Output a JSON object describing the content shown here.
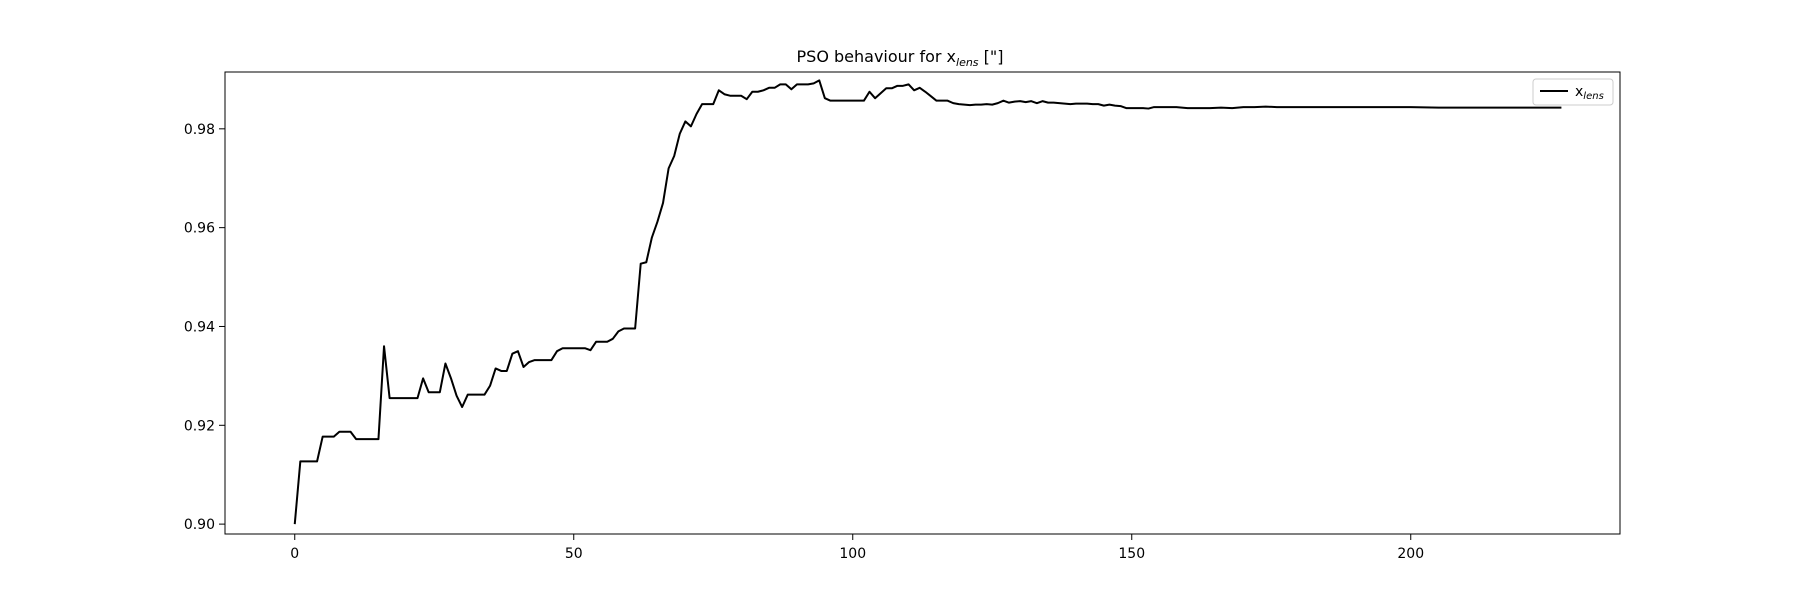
{
  "chart_data": {
    "type": "line",
    "title": {
      "main": "PSO behaviour for x",
      "subscript": "lens",
      "suffix": " [\"]"
    },
    "xlabel": "",
    "ylabel": "",
    "xlim": [
      -12.5,
      237.5
    ],
    "ylim": [
      0.898,
      0.9915
    ],
    "xticks": [
      0,
      50,
      100,
      150,
      200
    ],
    "yticks": [
      0.9,
      0.92,
      0.94,
      0.96,
      0.98
    ],
    "xtick_labels": [
      "0",
      "50",
      "100",
      "150",
      "200"
    ],
    "ytick_labels": [
      "0.90",
      "0.92",
      "0.94",
      "0.96",
      "0.98"
    ],
    "grid": false,
    "legend_placement": "top-right",
    "series": [
      {
        "name": "x",
        "name_subscript": "lens",
        "color": "#000000",
        "points": [
          [
            0,
            0.9
          ],
          [
            1,
            0.9127
          ],
          [
            2,
            0.9127
          ],
          [
            3,
            0.9127
          ],
          [
            4,
            0.9127
          ],
          [
            5,
            0.9177
          ],
          [
            6,
            0.9177
          ],
          [
            7,
            0.9177
          ],
          [
            8,
            0.9187
          ],
          [
            9,
            0.9187
          ],
          [
            10,
            0.9187
          ],
          [
            11,
            0.9172
          ],
          [
            12,
            0.9172
          ],
          [
            13,
            0.9172
          ],
          [
            14,
            0.9172
          ],
          [
            15,
            0.9172
          ],
          [
            16,
            0.936
          ],
          [
            17,
            0.9255
          ],
          [
            18,
            0.9255
          ],
          [
            19,
            0.9255
          ],
          [
            20,
            0.9255
          ],
          [
            21,
            0.9255
          ],
          [
            22,
            0.9255
          ],
          [
            23,
            0.9295
          ],
          [
            24,
            0.9267
          ],
          [
            25,
            0.9267
          ],
          [
            26,
            0.9267
          ],
          [
            27,
            0.9325
          ],
          [
            28,
            0.9295
          ],
          [
            29,
            0.926
          ],
          [
            30,
            0.9237
          ],
          [
            31,
            0.9262
          ],
          [
            32,
            0.9262
          ],
          [
            33,
            0.9262
          ],
          [
            34,
            0.9262
          ],
          [
            35,
            0.928
          ],
          [
            36,
            0.9315
          ],
          [
            37,
            0.931
          ],
          [
            38,
            0.931
          ],
          [
            39,
            0.9345
          ],
          [
            40,
            0.935
          ],
          [
            41,
            0.9318
          ],
          [
            42,
            0.9328
          ],
          [
            43,
            0.9332
          ],
          [
            44,
            0.9332
          ],
          [
            45,
            0.9332
          ],
          [
            46,
            0.9332
          ],
          [
            47,
            0.935
          ],
          [
            48,
            0.9356
          ],
          [
            49,
            0.9356
          ],
          [
            50,
            0.9356
          ],
          [
            51,
            0.9356
          ],
          [
            52,
            0.9356
          ],
          [
            53,
            0.9352
          ],
          [
            54,
            0.9369
          ],
          [
            55,
            0.9369
          ],
          [
            56,
            0.9369
          ],
          [
            57,
            0.9375
          ],
          [
            58,
            0.939
          ],
          [
            59,
            0.9396
          ],
          [
            60,
            0.9396
          ],
          [
            61,
            0.9396
          ],
          [
            62,
            0.9527
          ],
          [
            63,
            0.953
          ],
          [
            64,
            0.958
          ],
          [
            65,
            0.9612
          ],
          [
            66,
            0.965
          ],
          [
            67,
            0.972
          ],
          [
            68,
            0.9745
          ],
          [
            69,
            0.979
          ],
          [
            70,
            0.9815
          ],
          [
            71,
            0.9805
          ],
          [
            72,
            0.983
          ],
          [
            73,
            0.985
          ],
          [
            74,
            0.985
          ],
          [
            75,
            0.985
          ],
          [
            76,
            0.9878
          ],
          [
            77,
            0.987
          ],
          [
            78,
            0.9867
          ],
          [
            79,
            0.9867
          ],
          [
            80,
            0.9867
          ],
          [
            81,
            0.986
          ],
          [
            82,
            0.9875
          ],
          [
            83,
            0.9875
          ],
          [
            84,
            0.9878
          ],
          [
            85,
            0.9883
          ],
          [
            86,
            0.9883
          ],
          [
            87,
            0.989
          ],
          [
            88,
            0.989
          ],
          [
            89,
            0.988
          ],
          [
            90,
            0.989
          ],
          [
            91,
            0.989
          ],
          [
            92,
            0.989
          ],
          [
            93,
            0.9892
          ],
          [
            94,
            0.9898
          ],
          [
            95,
            0.9862
          ],
          [
            96,
            0.9857
          ],
          [
            97,
            0.9857
          ],
          [
            98,
            0.9857
          ],
          [
            99,
            0.9857
          ],
          [
            100,
            0.9857
          ],
          [
            101,
            0.9857
          ],
          [
            102,
            0.9857
          ],
          [
            103,
            0.9875
          ],
          [
            104,
            0.9862
          ],
          [
            105,
            0.9872
          ],
          [
            106,
            0.9882
          ],
          [
            107,
            0.9882
          ],
          [
            108,
            0.9887
          ],
          [
            109,
            0.9887
          ],
          [
            110,
            0.989
          ],
          [
            111,
            0.9878
          ],
          [
            112,
            0.9883
          ],
          [
            113,
            0.9875
          ],
          [
            114,
            0.9866
          ],
          [
            115,
            0.9857
          ],
          [
            116,
            0.9857
          ],
          [
            117,
            0.9857
          ],
          [
            118,
            0.9852
          ],
          [
            119,
            0.985
          ],
          [
            120,
            0.9849
          ],
          [
            121,
            0.9848
          ],
          [
            122,
            0.9849
          ],
          [
            123,
            0.9849
          ],
          [
            124,
            0.985
          ],
          [
            125,
            0.9849
          ],
          [
            126,
            0.9852
          ],
          [
            127,
            0.9857
          ],
          [
            128,
            0.9853
          ],
          [
            129,
            0.9855
          ],
          [
            130,
            0.9856
          ],
          [
            131,
            0.9854
          ],
          [
            132,
            0.9856
          ],
          [
            133,
            0.9852
          ],
          [
            134,
            0.9856
          ],
          [
            135,
            0.9853
          ],
          [
            136,
            0.9853
          ],
          [
            137,
            0.9852
          ],
          [
            138,
            0.9851
          ],
          [
            139,
            0.985
          ],
          [
            140,
            0.9851
          ],
          [
            141,
            0.9851
          ],
          [
            142,
            0.9851
          ],
          [
            143,
            0.985
          ],
          [
            144,
            0.985
          ],
          [
            145,
            0.9847
          ],
          [
            146,
            0.9849
          ],
          [
            147,
            0.9847
          ],
          [
            148,
            0.9846
          ],
          [
            149,
            0.9842
          ],
          [
            150,
            0.9842
          ],
          [
            151,
            0.9842
          ],
          [
            152,
            0.9842
          ],
          [
            153,
            0.9841
          ],
          [
            154,
            0.9844
          ],
          [
            155,
            0.9844
          ],
          [
            156,
            0.9844
          ],
          [
            157,
            0.9844
          ],
          [
            158,
            0.9844
          ],
          [
            159,
            0.9843
          ],
          [
            160,
            0.9842
          ],
          [
            162,
            0.9842
          ],
          [
            164,
            0.9842
          ],
          [
            166,
            0.9843
          ],
          [
            168,
            0.9842
          ],
          [
            170,
            0.9844
          ],
          [
            172,
            0.9844
          ],
          [
            174,
            0.9845
          ],
          [
            176,
            0.9844
          ],
          [
            178,
            0.9844
          ],
          [
            180,
            0.9844
          ],
          [
            185,
            0.9844
          ],
          [
            190,
            0.9844
          ],
          [
            195,
            0.9844
          ],
          [
            200,
            0.9844
          ],
          [
            205,
            0.9843
          ],
          [
            210,
            0.9843
          ],
          [
            215,
            0.9843
          ],
          [
            220,
            0.9843
          ],
          [
            225,
            0.9843
          ],
          [
            227,
            0.9843
          ]
        ]
      }
    ]
  }
}
